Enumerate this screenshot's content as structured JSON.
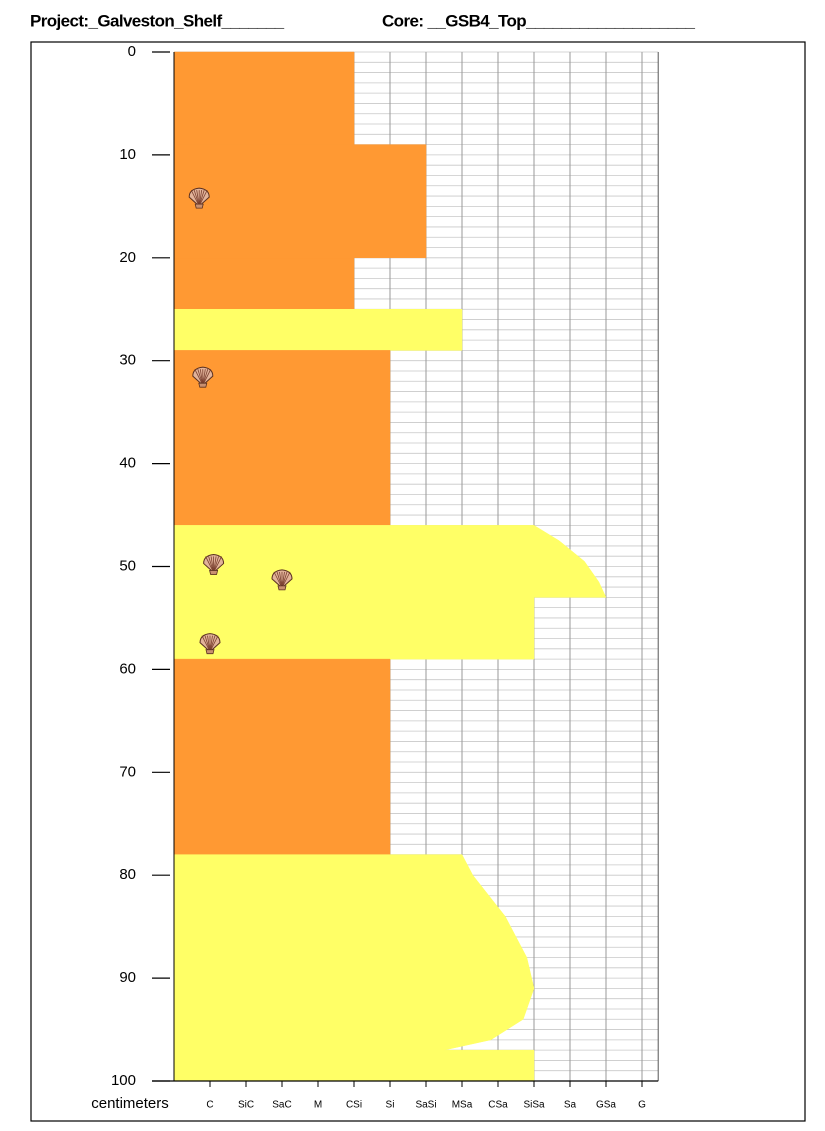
{
  "header": {
    "project": "Project:_Galveston_Shelf_______",
    "core": "Core: __GSB4_Top___________________"
  },
  "chart_data": {
    "type": "core-log",
    "y_label": "centimeters",
    "ylim": [
      0,
      100
    ],
    "yticks": [
      0,
      10,
      20,
      30,
      40,
      50,
      60,
      70,
      80,
      90,
      100
    ],
    "y_inverted": true,
    "minor_grid_step": 1,
    "xlim": [
      0,
      13.45
    ],
    "xticks": [
      {
        "value": 1,
        "label": "C"
      },
      {
        "value": 2,
        "label": "SiC"
      },
      {
        "value": 3,
        "label": "SaC"
      },
      {
        "value": 4,
        "label": "M"
      },
      {
        "value": 5,
        "label": "CSi"
      },
      {
        "value": 6,
        "label": "Si"
      },
      {
        "value": 7,
        "label": "SaSi"
      },
      {
        "value": 8,
        "label": "MSa"
      },
      {
        "value": 9,
        "label": "CSa"
      },
      {
        "value": 10,
        "label": "SiSa"
      },
      {
        "value": 11,
        "label": "Sa"
      },
      {
        "value": 12,
        "label": "GSa"
      },
      {
        "value": 13,
        "label": "G"
      }
    ],
    "grid": true,
    "layers": [
      {
        "color": "#ff9933",
        "depths": [
          0,
          9
        ],
        "grains": [
          5,
          5
        ]
      },
      {
        "color": "#ff9933",
        "depths": [
          9,
          20
        ],
        "grains": [
          7,
          7
        ]
      },
      {
        "color": "#ff9933",
        "depths": [
          20,
          25
        ],
        "grains": [
          5,
          5
        ]
      },
      {
        "color": "#ffff66",
        "depths": [
          25,
          29
        ],
        "grains": [
          8,
          8
        ]
      },
      {
        "color": "#ff9933",
        "depths": [
          29,
          46
        ],
        "grains": [
          6,
          6
        ]
      },
      {
        "color": "#ffff66",
        "depths": [
          46,
          47.5,
          49.5,
          51.5,
          53
        ],
        "grains": [
          10,
          10.7,
          11.4,
          11.8,
          12
        ]
      },
      {
        "color": "#ffff66",
        "depths": [
          53,
          59
        ],
        "grains": [
          10,
          10
        ]
      },
      {
        "color": "#ff9933",
        "depths": [
          59,
          78
        ],
        "grains": [
          6,
          6
        ]
      },
      {
        "color": "#ffff66",
        "depths": [
          78,
          80,
          84,
          88,
          91,
          94,
          96,
          97
        ],
        "grains": [
          8,
          8.3,
          9.2,
          9.8,
          10,
          9.7,
          8.8,
          7.5
        ]
      },
      {
        "color": "#ffff66",
        "depths": [
          97,
          100
        ],
        "grains": [
          10,
          10
        ]
      }
    ],
    "fossils": {
      "depths": [
        14.2,
        31.6,
        49.8,
        51.3,
        57.5
      ],
      "grains": [
        0.7,
        0.8,
        1.1,
        3.0,
        1.0
      ]
    }
  }
}
